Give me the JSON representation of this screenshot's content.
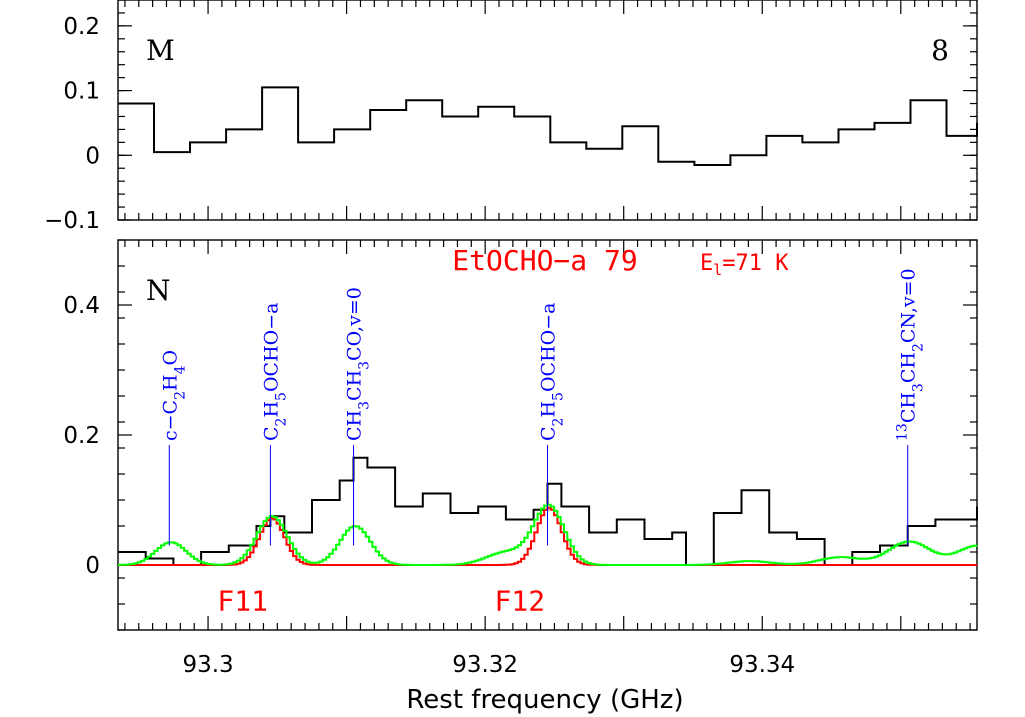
{
  "colors": {
    "observed": "#000000",
    "model_main": "#ff0000",
    "model_all": "#00ff00",
    "line_id": "#0000ff",
    "label_red": "#ff0000"
  },
  "chart_data": [
    {
      "type": "line",
      "panel_label": "M",
      "panel_number": "8",
      "xlim": [
        93.2935,
        93.3555
      ],
      "ylim": [
        -0.1,
        0.24
      ],
      "yticks": [
        {
          "v": -0.1,
          "label": "−0.1"
        },
        {
          "v": 0,
          "label": "0"
        },
        {
          "v": 0.1,
          "label": "0.1"
        },
        {
          "v": 0.2,
          "label": "0.2"
        }
      ],
      "series": [
        {
          "role": "observed",
          "x": [
            93.2935,
            93.2961,
            93.2987,
            93.3013,
            93.3039,
            93.3065,
            93.3091,
            93.3117,
            93.3143,
            93.3169,
            93.3195,
            93.3221,
            93.3247,
            93.3273,
            93.3299,
            93.3325,
            93.3351,
            93.3377,
            93.3403,
            93.3429,
            93.3455,
            93.3481,
            93.3507,
            93.3533,
            93.3555
          ],
          "values": [
            0.08,
            0.005,
            0.02,
            0.04,
            0.105,
            0.02,
            0.04,
            0.07,
            0.085,
            0.06,
            0.075,
            0.06,
            0.02,
            0.01,
            0.045,
            -0.01,
            -0.015,
            0.0,
            0.03,
            0.02,
            0.04,
            0.05,
            0.085,
            0.03,
            0.05
          ]
        }
      ]
    },
    {
      "type": "line",
      "panel_label": "N",
      "xlim": [
        93.2935,
        93.3555
      ],
      "ylim": [
        -0.1,
        0.5
      ],
      "xlabel": "Rest frequency (GHz)",
      "xticks": [
        {
          "v": 93.3,
          "label": "93.3"
        },
        {
          "v": 93.32,
          "label": "93.32"
        },
        {
          "v": 93.34,
          "label": "93.34"
        }
      ],
      "yticks": [
        {
          "v": 0,
          "label": "0"
        },
        {
          "v": 0.2,
          "label": "0.2"
        },
        {
          "v": 0.4,
          "label": "0.4"
        }
      ],
      "title": "EtOCHO−a 79",
      "energy_label": "E",
      "energy_sub": "l",
      "energy_value": "=71 K",
      "series": [
        {
          "role": "observed",
          "x": [
            93.2935,
            93.2955,
            93.2975,
            93.2995,
            93.3015,
            93.3035,
            93.3045,
            93.3055,
            93.3075,
            93.3095,
            93.3105,
            93.3115,
            93.3135,
            93.3155,
            93.3175,
            93.3195,
            93.3215,
            93.3235,
            93.3245,
            93.3255,
            93.3275,
            93.3295,
            93.3315,
            93.3335,
            93.3345,
            93.3365,
            93.3385,
            93.3405,
            93.3425,
            93.3445,
            93.3465,
            93.3485,
            93.3505,
            93.3525,
            93.3555
          ],
          "values": [
            0.02,
            0.01,
            0.0,
            0.02,
            0.03,
            0.06,
            0.075,
            0.05,
            0.1,
            0.13,
            0.165,
            0.15,
            0.09,
            0.11,
            0.08,
            0.09,
            0.07,
            0.085,
            0.125,
            0.09,
            0.05,
            0.07,
            0.04,
            0.05,
            0.0,
            0.08,
            0.115,
            0.05,
            0.04,
            0.0,
            0.02,
            0.03,
            0.06,
            0.07,
            0.09
          ]
        },
        {
          "role": "model_main",
          "peaks": [
            {
              "x": 93.3045,
              "amp": 0.072,
              "sigma": 0.0009
            },
            {
              "x": 93.3245,
              "amp": 0.088,
              "sigma": 0.0009
            }
          ],
          "x_start": 93.2935,
          "x_end": 93.3555
        },
        {
          "role": "model_all",
          "peaks": [
            {
              "x": 93.2972,
              "amp": 0.035,
              "sigma": 0.0011
            },
            {
              "x": 93.3045,
              "amp": 0.075,
              "sigma": 0.0011
            },
            {
              "x": 93.3105,
              "amp": 0.06,
              "sigma": 0.0011
            },
            {
              "x": 93.3215,
              "amp": 0.02,
              "sigma": 0.0015
            },
            {
              "x": 93.3245,
              "amp": 0.09,
              "sigma": 0.0011
            },
            {
              "x": 93.339,
              "amp": 0.006,
              "sigma": 0.0015
            },
            {
              "x": 93.3455,
              "amp": 0.012,
              "sigma": 0.0015
            },
            {
              "x": 93.3505,
              "amp": 0.036,
              "sigma": 0.0015
            },
            {
              "x": 93.3555,
              "amp": 0.03,
              "sigma": 0.0015
            }
          ],
          "x_start": 93.2935,
          "x_end": 93.3555
        }
      ],
      "line_ids": [
        {
          "x": 93.2972,
          "parts": [
            [
              "c−C",
              ""
            ],
            [
              "2",
              "sub"
            ],
            [
              "H",
              ""
            ],
            [
              "4",
              "sub"
            ],
            [
              "O",
              ""
            ]
          ]
        },
        {
          "x": 93.3045,
          "parts": [
            [
              "C",
              ""
            ],
            [
              "2",
              "sub"
            ],
            [
              "H",
              ""
            ],
            [
              "5",
              "sub"
            ],
            [
              "OCHO−a",
              ""
            ]
          ]
        },
        {
          "x": 93.3105,
          "parts": [
            [
              "CH",
              ""
            ],
            [
              "3",
              "sub"
            ],
            [
              "CH",
              ""
            ],
            [
              "3",
              "sub"
            ],
            [
              "CO,v=0",
              ""
            ]
          ]
        },
        {
          "x": 93.3245,
          "parts": [
            [
              "C",
              ""
            ],
            [
              "2",
              "sub"
            ],
            [
              "H",
              ""
            ],
            [
              "5",
              "sub"
            ],
            [
              "OCHO−a",
              ""
            ]
          ]
        },
        {
          "x": 93.3505,
          "parts": [
            [
              "13",
              "sup"
            ],
            [
              "CH",
              ""
            ],
            [
              "3",
              "sub"
            ],
            [
              "CH",
              ""
            ],
            [
              "2",
              "sub"
            ],
            [
              "CN,v=0",
              ""
            ]
          ]
        }
      ],
      "annotations": [
        {
          "text": "F11",
          "x": 93.3025
        },
        {
          "text": "F12",
          "x": 93.3225
        }
      ]
    }
  ]
}
